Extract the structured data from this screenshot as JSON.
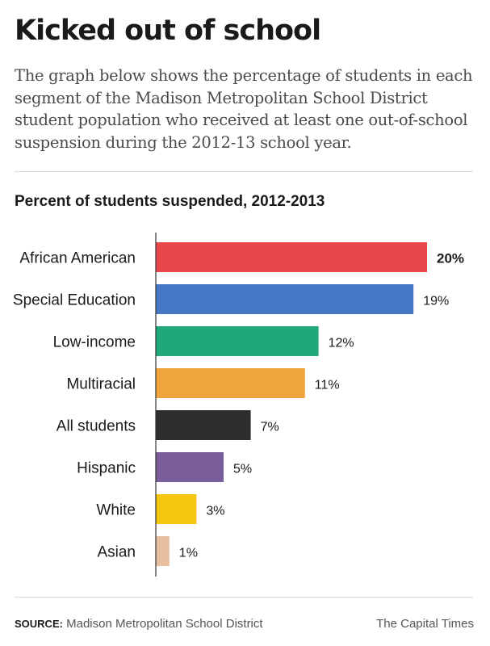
{
  "headline": "Kicked out of school",
  "dek": "The graph below shows the percentage of students in each segment of the Madison Metropolitan School District student population who received at least one out-of-school suspension during the 2012-13 school year.",
  "chart_data": {
    "type": "bar",
    "orientation": "horizontal",
    "title": "Percent of students suspended, 2012-2013",
    "categories": [
      "African American",
      "Special Education",
      "Low-income",
      "Multiracial",
      "All students",
      "Hispanic",
      "White",
      "Asian"
    ],
    "values": [
      20,
      19,
      12,
      11,
      7,
      5,
      3,
      1
    ],
    "value_labels": [
      "20%",
      "19%",
      "12%",
      "11%",
      "7%",
      "5%",
      "3%",
      "1%"
    ],
    "colors": [
      "#e8474a",
      "#4478c4",
      "#1fa879",
      "#f0a43d",
      "#2e2e2e",
      "#7a5e9c",
      "#f6c70f",
      "#e6bea0"
    ],
    "highlight_index": 0,
    "xlim": [
      0,
      20
    ],
    "grid": false,
    "legend": "none"
  },
  "footer": {
    "source_label": "SOURCE:",
    "source_text": "Madison Metropolitan School District",
    "credit": "The Capital Times"
  }
}
